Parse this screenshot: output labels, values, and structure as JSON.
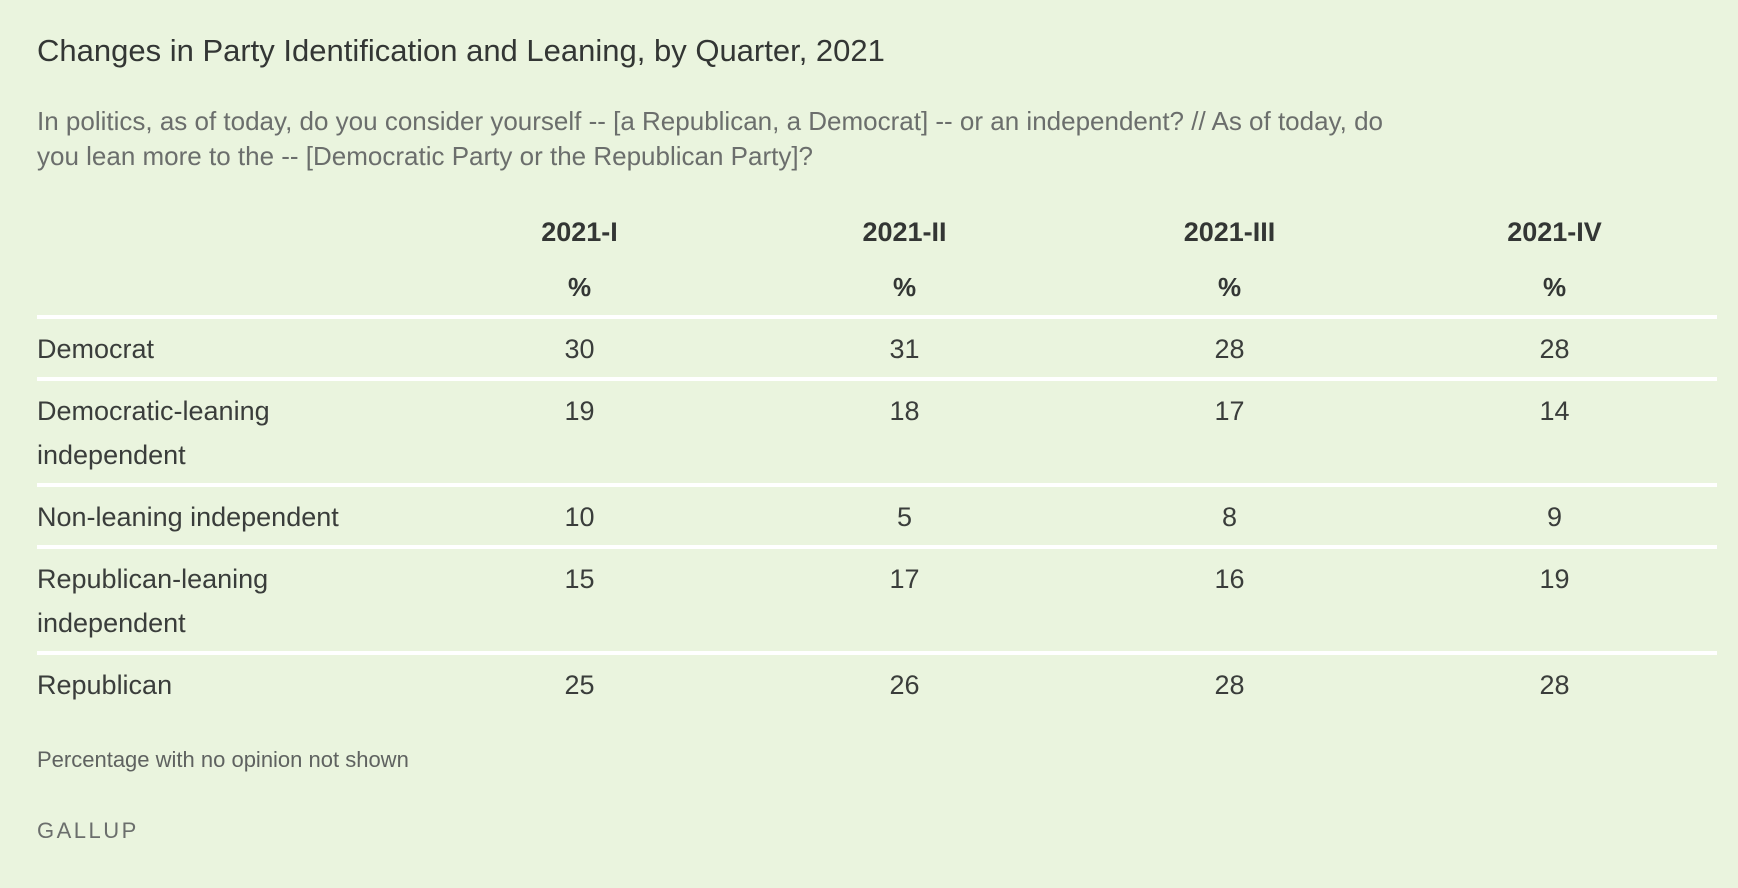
{
  "title": "Changes in Party Identification and Leaning, by Quarter, 2021",
  "subtitle": "In politics, as of today, do you consider yourself -- [a Republican, a Democrat] -- or an independent? // As of today, do you lean more to the -- [Democratic Party or the Republican Party]?",
  "chart_data": {
    "type": "table",
    "columns": [
      "2021-I",
      "2021-II",
      "2021-III",
      "2021-IV"
    ],
    "unit_row": [
      "%",
      "%",
      "%",
      "%"
    ],
    "rows": [
      {
        "label": "Democrat",
        "values": [
          "30",
          "31",
          "28",
          "28"
        ]
      },
      {
        "label": "Democratic-leaning independent",
        "values": [
          "19",
          "18",
          "17",
          "14"
        ]
      },
      {
        "label": "Non-leaning independent",
        "values": [
          "10",
          "5",
          "8",
          "9"
        ]
      },
      {
        "label": "Republican-leaning independent",
        "values": [
          "15",
          "17",
          "16",
          "19"
        ]
      },
      {
        "label": "Republican",
        "values": [
          "25",
          "26",
          "28",
          "28"
        ]
      }
    ]
  },
  "note": "Percentage with no opinion not shown",
  "source": "GALLUP"
}
